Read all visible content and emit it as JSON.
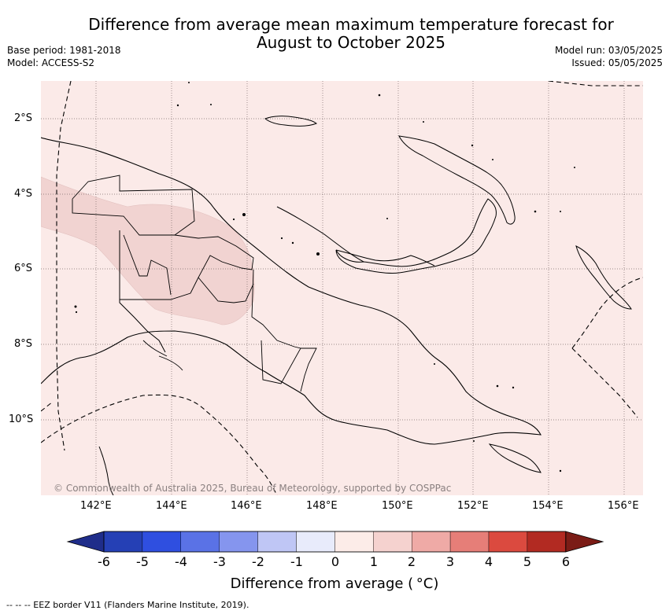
{
  "title": {
    "line1": "Difference from average mean maximum temperature forecast for",
    "line2": "August to October 2025"
  },
  "meta": {
    "base_period": "Base period: 1981-2018",
    "model": "Model: ACCESS-S2",
    "model_run": "Model run: 03/05/2025",
    "issued": "Issued: 05/05/2025"
  },
  "map": {
    "lat_labels": [
      "2°S",
      "4°S",
      "6°S",
      "8°S",
      "10°S"
    ],
    "lon_labels": [
      "142°E",
      "144°E",
      "146°E",
      "148°E",
      "150°E",
      "152°E",
      "154°E",
      "156°E"
    ],
    "background_color": "#fbeae8",
    "anomaly_region_color": "#f1d3d1",
    "copyright": "© Commonwealth of Australia 2025, Bureau of Meteorology, supported by COSPPac"
  },
  "colorbar": {
    "ticks": [
      "-6",
      "-5",
      "-4",
      "-3",
      "-2",
      "-1",
      "0",
      "1",
      "2",
      "3",
      "4",
      "5",
      "6"
    ],
    "colors": [
      "#1f2d8a",
      "#2540b5",
      "#2f4fe0",
      "#5a72e6",
      "#8595ee",
      "#bfc6f5",
      "#e8ebfb",
      "#fcece8",
      "#f5d2cf",
      "#efaaa6",
      "#e67e78",
      "#db4a3f",
      "#b22a22",
      "#7b1c16"
    ],
    "label": "Difference from average ( °C)"
  },
  "footnote": "--  --  -- EEZ border V11 (Flanders Marine Institute, 2019)."
}
